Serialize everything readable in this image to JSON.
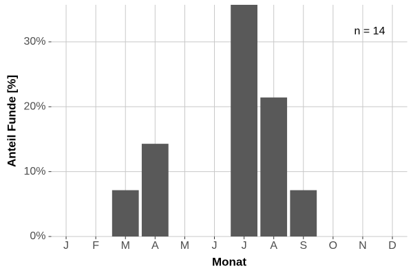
{
  "chart_data": {
    "type": "bar",
    "x_label": "Monat",
    "y_label": "Anteil Funde [%]",
    "annotation": "n = 14",
    "categories": [
      "J",
      "F",
      "M",
      "A",
      "M",
      "J",
      "J",
      "A",
      "S",
      "O",
      "N",
      "D"
    ],
    "values": [
      0,
      0,
      7.14,
      14.29,
      0,
      0,
      35.71,
      21.43,
      7.14,
      0,
      0,
      0
    ],
    "color": "#595959",
    "ylim": [
      0,
      35.71
    ],
    "yticks": [
      {
        "value": 0,
        "label": "0%"
      },
      {
        "value": 10,
        "label": "10%"
      },
      {
        "value": 20,
        "label": "20%"
      },
      {
        "value": 30,
        "label": "30%"
      }
    ],
    "grid": true
  }
}
